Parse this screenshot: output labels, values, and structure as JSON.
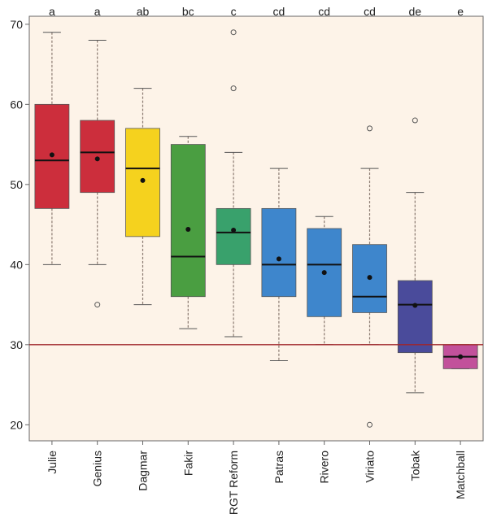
{
  "chart_data": {
    "type": "box",
    "categories": [
      "Julie",
      "Genius",
      "Dagmar",
      "Fakir",
      "RGT Reform",
      "Patras",
      "Rivero",
      "Viriato",
      "Tobak",
      "Matchball"
    ],
    "group_letters": [
      "a",
      "a",
      "ab",
      "bc",
      "c",
      "cd",
      "cd",
      "cd",
      "de",
      "e"
    ],
    "box_colors": [
      "#cc2e3c",
      "#cc2e3c",
      "#f5d21e",
      "#4a9e41",
      "#39a16c",
      "#3e86cc",
      "#3e86cc",
      "#3e86cc",
      "#4a4b9b",
      "#c2519b"
    ],
    "boxes": [
      {
        "whisker_low": 40,
        "q1": 47,
        "median": 53,
        "q3": 60,
        "whisker_high": 69,
        "mean": 53.7,
        "outliers": []
      },
      {
        "whisker_low": 40,
        "q1": 49,
        "median": 54,
        "q3": 58,
        "whisker_high": 68,
        "mean": 53.2,
        "outliers": [
          35
        ]
      },
      {
        "whisker_low": 35,
        "q1": 43.5,
        "median": 52,
        "q3": 57,
        "whisker_high": 62,
        "mean": 50.5,
        "outliers": []
      },
      {
        "whisker_low": 32,
        "q1": 36,
        "median": 41,
        "q3": 55,
        "whisker_high": 56,
        "mean": 44.4,
        "outliers": []
      },
      {
        "whisker_low": 31,
        "q1": 40,
        "median": 44,
        "q3": 47,
        "whisker_high": 54,
        "mean": 44.3,
        "outliers": [
          62,
          69
        ]
      },
      {
        "whisker_low": 28,
        "q1": 36,
        "median": 40,
        "q3": 47,
        "whisker_high": 52,
        "mean": 40.7,
        "outliers": []
      },
      {
        "whisker_low": 30,
        "q1": 33.5,
        "median": 40,
        "q3": 44.5,
        "whisker_high": 46,
        "mean": 39,
        "outliers": []
      },
      {
        "whisker_low": 30,
        "q1": 34,
        "median": 36,
        "q3": 42.5,
        "whisker_high": 52,
        "mean": 38.4,
        "outliers": [
          57,
          20
        ]
      },
      {
        "whisker_low": 24,
        "q1": 29,
        "median": 35,
        "q3": 38,
        "whisker_high": 49,
        "mean": 34.9,
        "outliers": [
          58
        ]
      },
      {
        "whisker_low": 27,
        "q1": 27,
        "median": 28.5,
        "q3": 30,
        "whisker_high": 30,
        "mean": 28.5,
        "outliers": []
      }
    ],
    "reference_line": {
      "y": 30,
      "color": "#a0262a"
    },
    "yticks": [
      20,
      30,
      40,
      50,
      60,
      70
    ],
    "ylim": [
      18,
      71
    ],
    "plot_background": "#fdf3e8",
    "grid": false,
    "title": "",
    "xlabel": "",
    "ylabel": ""
  }
}
